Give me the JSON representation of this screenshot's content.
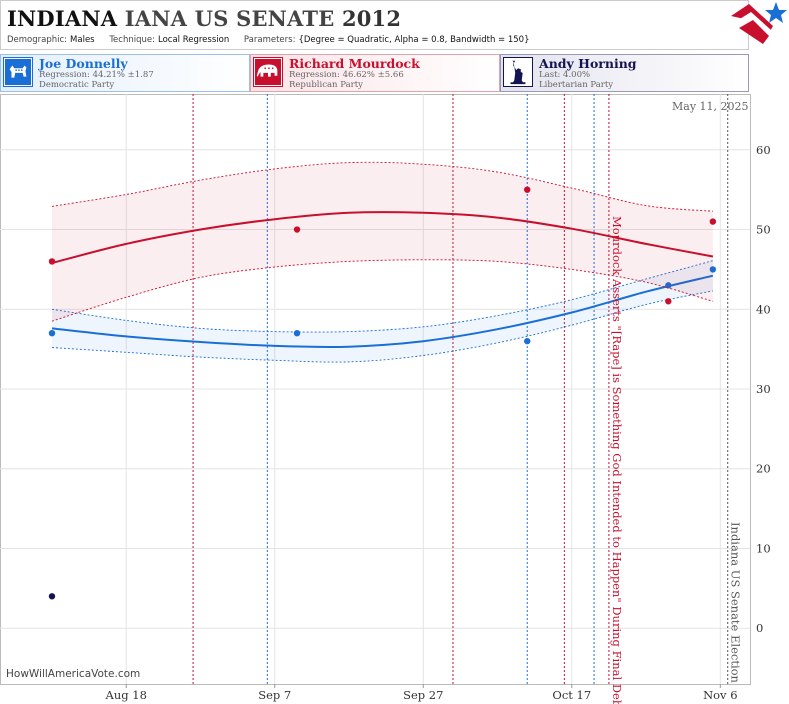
{
  "header": {
    "state": "INDIANA",
    "race": "IANA US SENATE",
    "year": "2012",
    "demographic_label": "Demographic:",
    "demographic": "Males",
    "technique_label": "Technique:",
    "technique": "Local Regression",
    "parameters_label": "Parameters:",
    "parameters": "{Degree = Quadratic, Alpha = 0.8, Bandwidth = 150}"
  },
  "candidates": [
    {
      "name": "Joe Donnelly",
      "line1": "Regression: 44.21% ±1.87",
      "line2": "Democratic Party",
      "color": "#1a6fd6",
      "icon": "donkey-icon"
    },
    {
      "name": "Richard Mourdock",
      "line1": "Regression: 46.62% ±5.66",
      "line2": "Republican Party",
      "color": "#c8102e",
      "icon": "elephant-icon"
    },
    {
      "name": "Andy Horning",
      "line1": "Last: 4.00%",
      "line2": "Libertarian Party",
      "color": "#141450",
      "icon": "statue-of-liberty-icon"
    }
  ],
  "date_stamp": "May 11, 2025",
  "watermark": "HowWillAmericaVote.com",
  "chart_data": {
    "type": "line",
    "ylim": [
      -7,
      67
    ],
    "yticks": [
      0,
      10,
      20,
      30,
      40,
      50,
      60
    ],
    "xlim_dates": [
      "2012-08-01",
      "2012-11-10"
    ],
    "xticks": [
      {
        "date": "2012-08-18",
        "label": "Aug 18"
      },
      {
        "date": "2012-09-07",
        "label": "Sep 7"
      },
      {
        "date": "2012-09-27",
        "label": "Sep 27"
      },
      {
        "date": "2012-10-17",
        "label": "Oct 17"
      },
      {
        "date": "2012-11-06",
        "label": "Nov 6"
      }
    ],
    "grid": true,
    "series": [
      {
        "name": "Joe Donnelly",
        "color": "#1a6fd6",
        "points": [
          [
            "2012-08-08",
            37
          ],
          [
            "2012-09-10",
            37
          ],
          [
            "2012-10-11",
            36
          ],
          [
            "2012-10-30",
            43
          ],
          [
            "2012-11-05",
            45
          ]
        ],
        "trend": [
          [
            "2012-08-08",
            37.6
          ],
          [
            "2012-08-18",
            36.6
          ],
          [
            "2012-08-28",
            35.9
          ],
          [
            "2012-09-07",
            35.4
          ],
          [
            "2012-09-17",
            35.3
          ],
          [
            "2012-09-27",
            36.0
          ],
          [
            "2012-10-07",
            37.5
          ],
          [
            "2012-10-17",
            39.6
          ],
          [
            "2012-10-27",
            42.2
          ],
          [
            "2012-11-05",
            44.21
          ]
        ],
        "band_upper": [
          [
            "2012-08-08",
            40.0
          ],
          [
            "2012-08-18",
            38.6
          ],
          [
            "2012-08-28",
            37.6
          ],
          [
            "2012-09-07",
            37.2
          ],
          [
            "2012-09-17",
            37.2
          ],
          [
            "2012-09-27",
            37.8
          ],
          [
            "2012-10-07",
            39.2
          ],
          [
            "2012-10-17",
            41.2
          ],
          [
            "2012-10-27",
            43.8
          ],
          [
            "2012-11-05",
            46.1
          ]
        ],
        "band_lower": [
          [
            "2012-08-08",
            35.2
          ],
          [
            "2012-08-18",
            34.6
          ],
          [
            "2012-08-28",
            34.0
          ],
          [
            "2012-09-07",
            33.6
          ],
          [
            "2012-09-17",
            33.4
          ],
          [
            "2012-09-27",
            34.2
          ],
          [
            "2012-10-07",
            35.8
          ],
          [
            "2012-10-17",
            38.0
          ],
          [
            "2012-10-27",
            40.6
          ],
          [
            "2012-11-05",
            42.3
          ]
        ]
      },
      {
        "name": "Richard Mourdock",
        "color": "#c8102e",
        "points": [
          [
            "2012-08-08",
            46
          ],
          [
            "2012-09-10",
            50
          ],
          [
            "2012-10-11",
            55
          ],
          [
            "2012-10-30",
            41
          ],
          [
            "2012-11-05",
            51
          ]
        ],
        "trend": [
          [
            "2012-08-08",
            45.8
          ],
          [
            "2012-08-18",
            48.2
          ],
          [
            "2012-08-28",
            50.0
          ],
          [
            "2012-09-07",
            51.3
          ],
          [
            "2012-09-17",
            52.1
          ],
          [
            "2012-09-27",
            52.1
          ],
          [
            "2012-10-07",
            51.5
          ],
          [
            "2012-10-17",
            50.1
          ],
          [
            "2012-10-27",
            48.2
          ],
          [
            "2012-11-05",
            46.62
          ]
        ],
        "band_upper": [
          [
            "2012-08-08",
            52.9
          ],
          [
            "2012-08-18",
            54.4
          ],
          [
            "2012-08-28",
            56.2
          ],
          [
            "2012-09-07",
            57.6
          ],
          [
            "2012-09-17",
            58.4
          ],
          [
            "2012-09-27",
            58.2
          ],
          [
            "2012-10-07",
            57.2
          ],
          [
            "2012-10-17",
            55.2
          ],
          [
            "2012-10-27",
            53.0
          ],
          [
            "2012-11-05",
            52.3
          ]
        ],
        "band_lower": [
          [
            "2012-08-08",
            38.5
          ],
          [
            "2012-08-18",
            41.5
          ],
          [
            "2012-08-28",
            44.0
          ],
          [
            "2012-09-07",
            45.3
          ],
          [
            "2012-09-17",
            46.0
          ],
          [
            "2012-09-27",
            46.2
          ],
          [
            "2012-10-07",
            46.0
          ],
          [
            "2012-10-17",
            45.0
          ],
          [
            "2012-10-27",
            43.4
          ],
          [
            "2012-11-05",
            41.0
          ]
        ]
      },
      {
        "name": "Andy Horning",
        "color": "#141450",
        "points": [
          [
            "2012-08-08",
            4
          ]
        ],
        "trend": [],
        "band_upper": [],
        "band_lower": []
      }
    ],
    "event_lines": [
      {
        "date": "2012-08-27",
        "color": "#c8102e"
      },
      {
        "date": "2012-09-06",
        "color": "#1a6fd6"
      },
      {
        "date": "2012-10-01",
        "color": "#c8102e"
      },
      {
        "date": "2012-10-11",
        "color": "#1a6fd6"
      },
      {
        "date": "2012-10-16",
        "color": "#c8102e"
      },
      {
        "date": "2012-10-20",
        "color": "#1a6fd6"
      },
      {
        "date": "2012-10-22",
        "color": "#c8102e"
      },
      {
        "date": "2012-11-07",
        "color": "#555555"
      }
    ],
    "annotations": [
      {
        "date": "2012-10-22",
        "text": "Mourdock Asserts \"[Rape] is Something God Intended to Happen\" During Final Debate",
        "color": "#c8102e"
      },
      {
        "date": "2012-11-07",
        "text": "Indiana US Senate Election",
        "color": "#555555"
      }
    ]
  }
}
